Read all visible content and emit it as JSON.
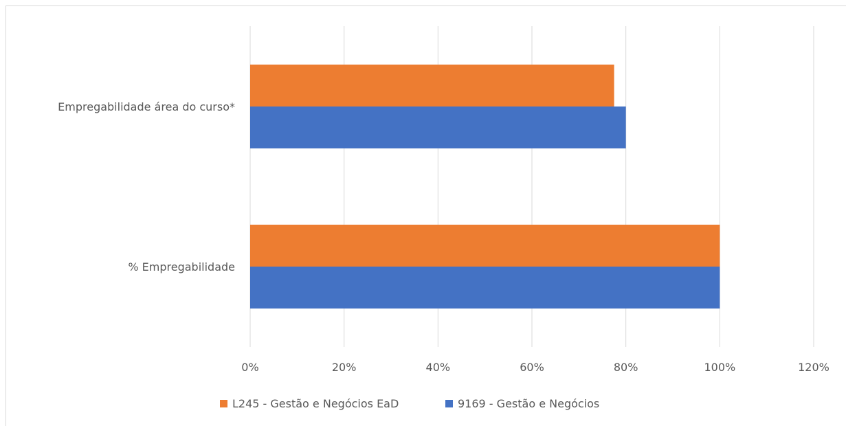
{
  "chart_data": {
    "type": "bar",
    "orientation": "horizontal",
    "title": "",
    "xlabel": "",
    "ylabel": "",
    "categories": [
      "Empregabilidade área do curso*",
      "% Empregabilidade"
    ],
    "series": [
      {
        "name": "L245 - Gestão e Negócios EaD",
        "color": "#ED7D31",
        "values": [
          0.775,
          1.0
        ]
      },
      {
        "name": "9169 - Gestão e Negócios",
        "color": "#4472C4",
        "values": [
          0.8,
          1.0
        ]
      }
    ],
    "xlim": [
      0,
      1.2
    ],
    "x_ticks": [
      0,
      0.2,
      0.4,
      0.6,
      0.8,
      1.0,
      1.2
    ],
    "x_tick_labels": [
      "0%",
      "20%",
      "40%",
      "60%",
      "80%",
      "100%",
      "120%"
    ],
    "grid": true,
    "legend_position": "bottom"
  }
}
